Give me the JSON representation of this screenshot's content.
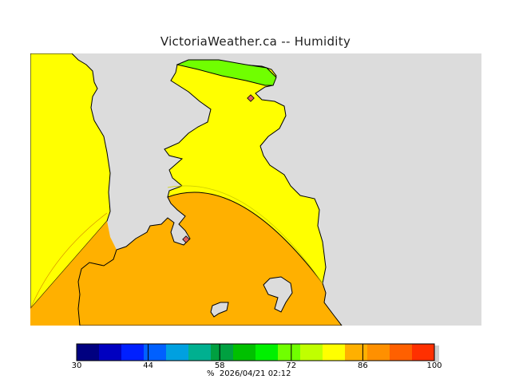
{
  "title": "VictoriaWeather.ca -- Humidity",
  "legend": {
    "min": 30,
    "max": 100,
    "step": 4.375,
    "colors": [
      "#000080",
      "#0000c0",
      "#0020ff",
      "#0060ff",
      "#00a0e0",
      "#00b090",
      "#00a040",
      "#00c000",
      "#00f000",
      "#70ff00",
      "#c0ff00",
      "#ffff00",
      "#ffb000",
      "#ff9000",
      "#ff6000",
      "#ff3000",
      "#ff0000"
    ],
    "tick_values": [
      30,
      44,
      58,
      72,
      86,
      100
    ],
    "tick_labels": [
      "30",
      "44",
      "58",
      "72",
      "86",
      "100"
    ],
    "unit": "%"
  },
  "timestamp": "2026/04/21 02:12",
  "map_colors": {
    "land": "#dcdcdc",
    "coast": "#000000",
    "humidity_orange": "#ffb000",
    "humidity_yellow": "#ffff00",
    "humidity_green": "#70ff00",
    "station_marker": "#e06060"
  }
}
